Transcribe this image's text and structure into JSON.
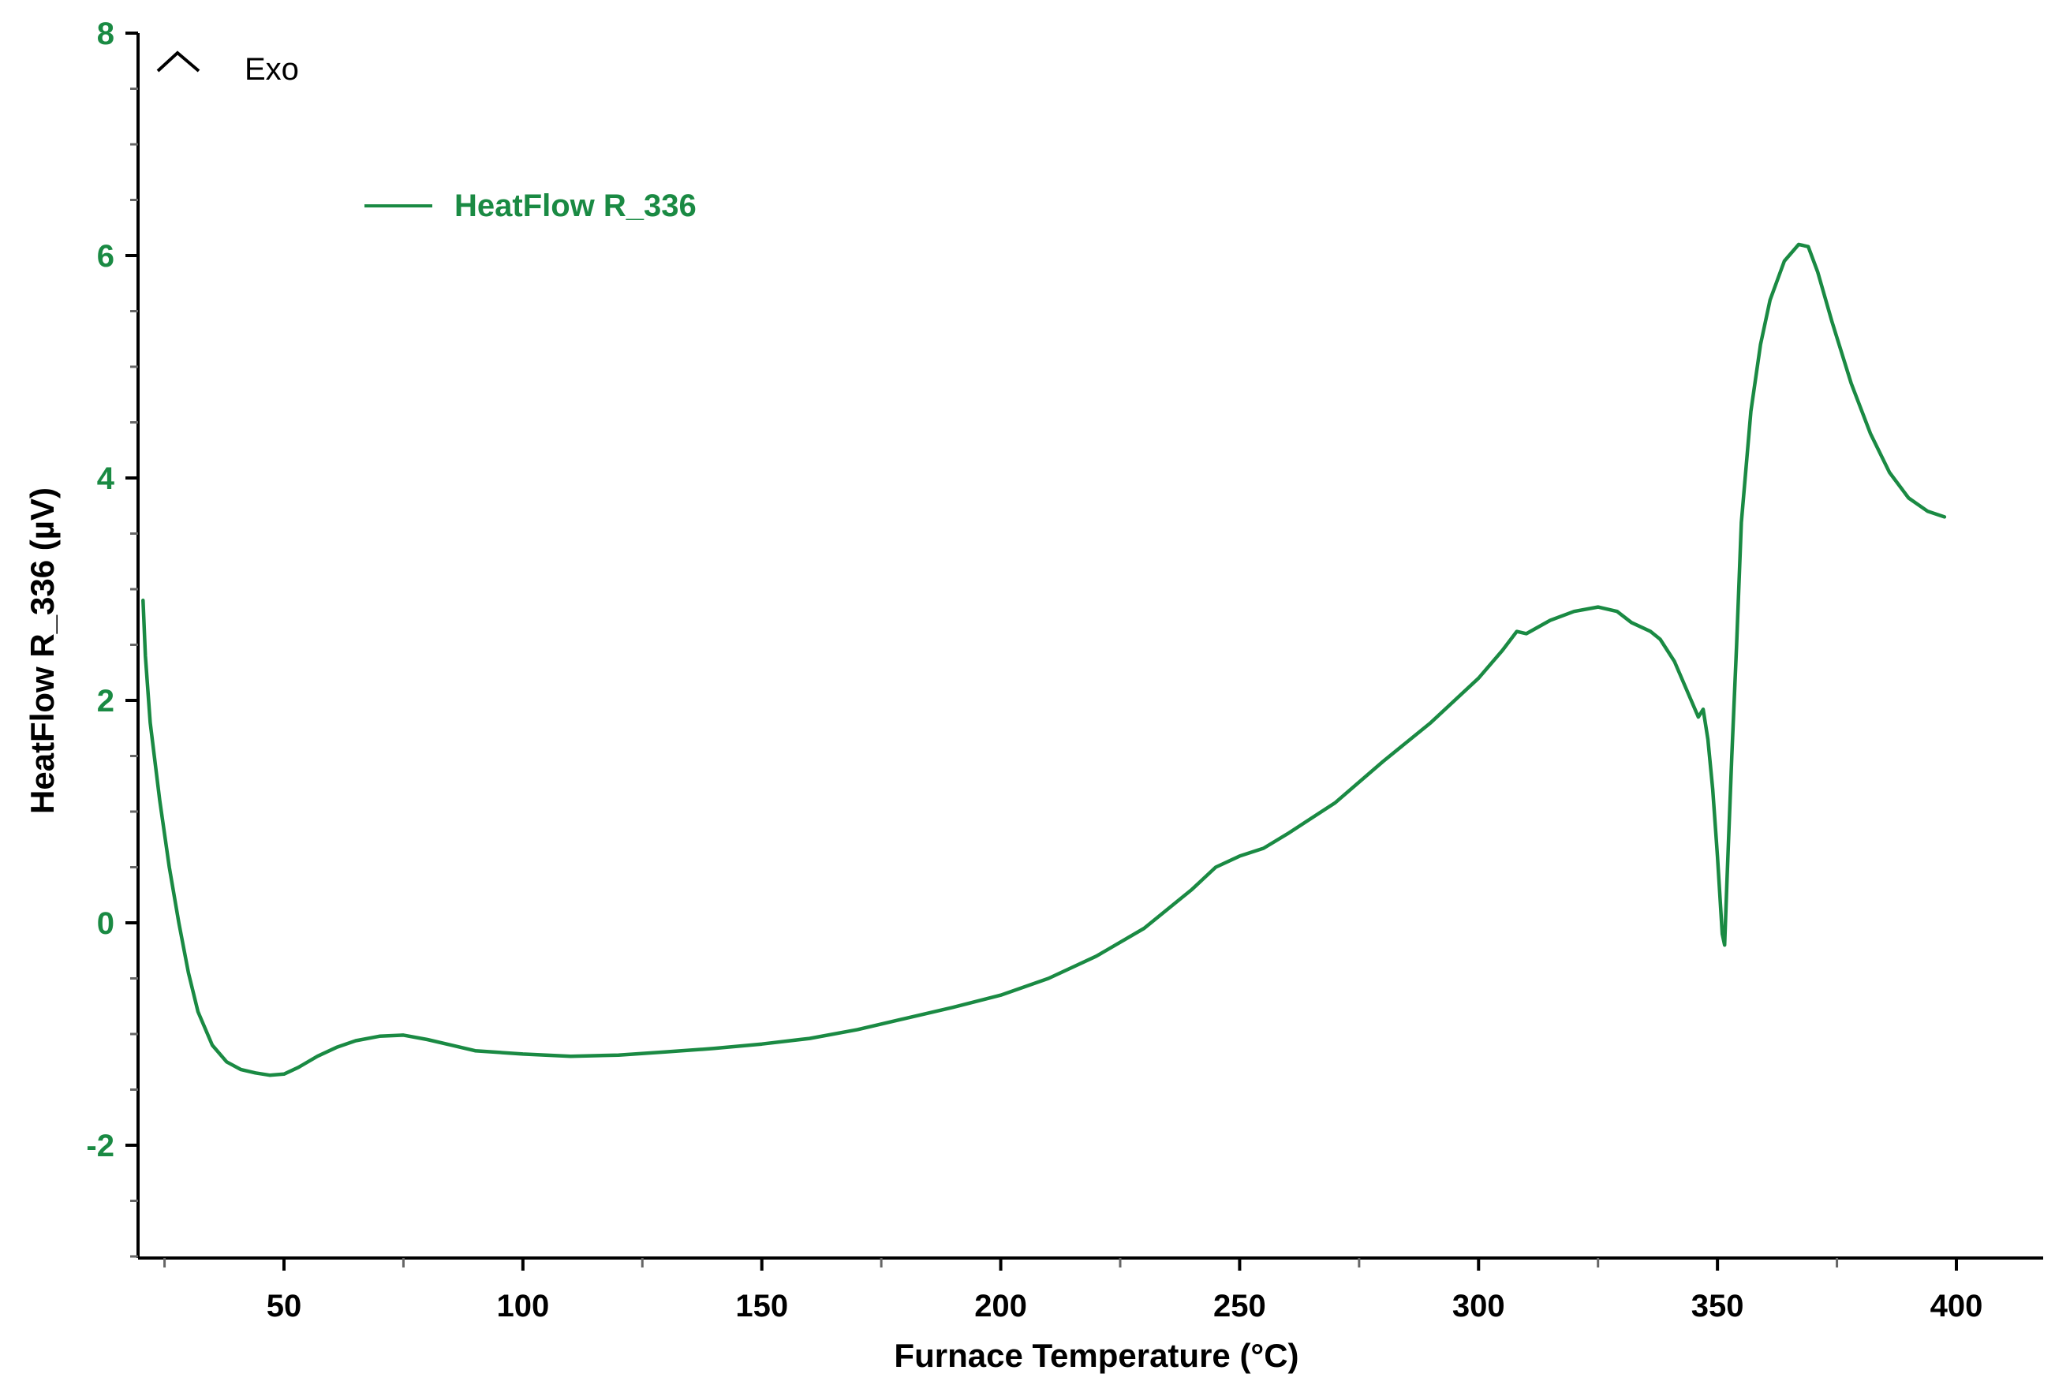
{
  "colors": {
    "series": "#1a8a43",
    "axis": "#000000",
    "minor_tick": "#666666",
    "ytick_text": "#1a8a43"
  },
  "chart_data": {
    "type": "line",
    "title": "",
    "xlabel": "Furnace Temperature (°C)",
    "ylabel": "HeatFlow R_336 (µV)",
    "xlim": [
      20,
      418
    ],
    "ylim": [
      -3,
      8
    ],
    "xticks": [
      50,
      100,
      150,
      200,
      250,
      300,
      350,
      400
    ],
    "yticks": [
      -2,
      0,
      2,
      4,
      6,
      8
    ],
    "grid": false,
    "legend_position": "top-left",
    "annotation": {
      "text": "Exo",
      "icon": "exo-up-arrow-icon"
    },
    "series": [
      {
        "name": "HeatFlow R_336",
        "points": [
          [
            20.5,
            2.9
          ],
          [
            21,
            2.4
          ],
          [
            22,
            1.8
          ],
          [
            24,
            1.1
          ],
          [
            26,
            0.5
          ],
          [
            28,
            0.0
          ],
          [
            30,
            -0.45
          ],
          [
            32,
            -0.8
          ],
          [
            35,
            -1.1
          ],
          [
            38,
            -1.25
          ],
          [
            41,
            -1.32
          ],
          [
            44,
            -1.35
          ],
          [
            47,
            -1.37
          ],
          [
            50,
            -1.36
          ],
          [
            53,
            -1.3
          ],
          [
            57,
            -1.2
          ],
          [
            61,
            -1.12
          ],
          [
            65,
            -1.06
          ],
          [
            70,
            -1.02
          ],
          [
            75,
            -1.01
          ],
          [
            80,
            -1.05
          ],
          [
            85,
            -1.1
          ],
          [
            90,
            -1.15
          ],
          [
            100,
            -1.18
          ],
          [
            110,
            -1.2
          ],
          [
            120,
            -1.19
          ],
          [
            130,
            -1.16
          ],
          [
            140,
            -1.13
          ],
          [
            150,
            -1.09
          ],
          [
            160,
            -1.04
          ],
          [
            170,
            -0.96
          ],
          [
            180,
            -0.86
          ],
          [
            190,
            -0.76
          ],
          [
            200,
            -0.65
          ],
          [
            210,
            -0.5
          ],
          [
            220,
            -0.3
          ],
          [
            230,
            -0.05
          ],
          [
            240,
            0.3
          ],
          [
            245,
            0.5
          ],
          [
            250,
            0.6
          ],
          [
            255,
            0.67
          ],
          [
            260,
            0.8
          ],
          [
            270,
            1.08
          ],
          [
            280,
            1.45
          ],
          [
            290,
            1.8
          ],
          [
            300,
            2.2
          ],
          [
            305,
            2.45
          ],
          [
            308,
            2.62
          ],
          [
            310,
            2.6
          ],
          [
            315,
            2.72
          ],
          [
            320,
            2.8
          ],
          [
            325,
            2.84
          ],
          [
            329,
            2.8
          ],
          [
            332,
            2.7
          ],
          [
            336,
            2.62
          ],
          [
            338,
            2.55
          ],
          [
            341,
            2.35
          ],
          [
            344,
            2.05
          ],
          [
            346,
            1.85
          ],
          [
            347,
            1.92
          ],
          [
            348,
            1.65
          ],
          [
            349,
            1.2
          ],
          [
            350,
            0.6
          ],
          [
            351,
            -0.1
          ],
          [
            351.5,
            -0.2
          ],
          [
            352,
            0.4
          ],
          [
            353,
            1.5
          ],
          [
            354,
            2.5
          ],
          [
            355,
            3.6
          ],
          [
            357,
            4.6
          ],
          [
            359,
            5.2
          ],
          [
            361,
            5.6
          ],
          [
            364,
            5.95
          ],
          [
            367,
            6.1
          ],
          [
            369,
            6.08
          ],
          [
            371,
            5.85
          ],
          [
            374,
            5.4
          ],
          [
            378,
            4.85
          ],
          [
            382,
            4.4
          ],
          [
            386,
            4.05
          ],
          [
            390,
            3.82
          ],
          [
            394,
            3.7
          ],
          [
            397.5,
            3.65
          ]
        ]
      }
    ]
  }
}
